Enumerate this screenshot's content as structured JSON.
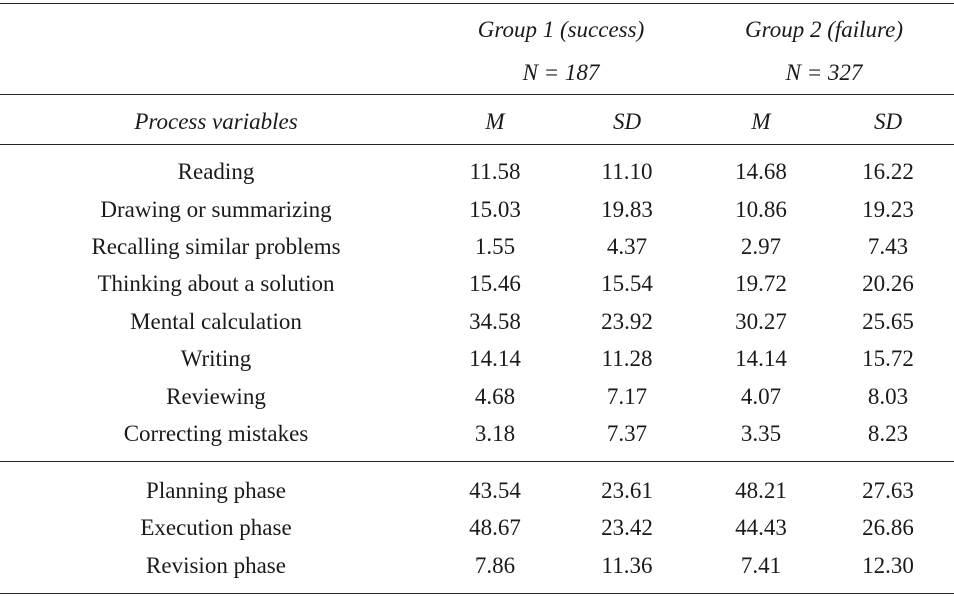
{
  "header": {
    "group1_title": "Group 1 (success)",
    "group1_n": "N = 187",
    "group2_title": "Group 2 (failure)",
    "group2_n": "N = 327",
    "col_variable": "Process variables",
    "col_g1_mean": "M",
    "col_g1_sd": "SD",
    "col_g2_mean": "M",
    "col_g2_sd": "SD"
  },
  "process_rows": [
    {
      "label": "Reading",
      "g1_m": "11.58",
      "g1_sd": "11.10",
      "g2_m": "14.68",
      "g2_sd": "16.22"
    },
    {
      "label": "Drawing or summarizing",
      "g1_m": "15.03",
      "g1_sd": "19.83",
      "g2_m": "10.86",
      "g2_sd": "19.23"
    },
    {
      "label": "Recalling similar problems",
      "g1_m": "1.55",
      "g1_sd": "4.37",
      "g2_m": "2.97",
      "g2_sd": "7.43"
    },
    {
      "label": "Thinking about a solution",
      "g1_m": "15.46",
      "g1_sd": "15.54",
      "g2_m": "19.72",
      "g2_sd": "20.26"
    },
    {
      "label": "Mental calculation",
      "g1_m": "34.58",
      "g1_sd": "23.92",
      "g2_m": "30.27",
      "g2_sd": "25.65"
    },
    {
      "label": "Writing",
      "g1_m": "14.14",
      "g1_sd": "11.28",
      "g2_m": "14.14",
      "g2_sd": "15.72"
    },
    {
      "label": "Reviewing",
      "g1_m": "4.68",
      "g1_sd": "7.17",
      "g2_m": "4.07",
      "g2_sd": "8.03"
    },
    {
      "label": "Correcting mistakes",
      "g1_m": "3.18",
      "g1_sd": "7.37",
      "g2_m": "3.35",
      "g2_sd": "8.23"
    }
  ],
  "phase_rows": [
    {
      "label": "Planning phase",
      "g1_m": "43.54",
      "g1_sd": "23.61",
      "g2_m": "48.21",
      "g2_sd": "27.63"
    },
    {
      "label": "Execution phase",
      "g1_m": "48.67",
      "g1_sd": "23.42",
      "g2_m": "44.43",
      "g2_sd": "26.86"
    },
    {
      "label": "Revision phase",
      "g1_m": "7.86",
      "g1_sd": "11.36",
      "g2_m": "7.41",
      "g2_sd": "12.30"
    }
  ]
}
